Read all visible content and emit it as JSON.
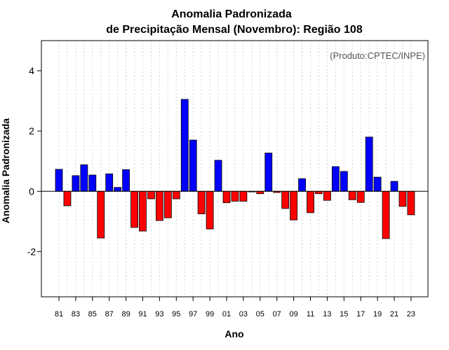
{
  "chart_data": {
    "type": "bar",
    "title_line1": "Anomalia Padronizada",
    "title_line2": "de Precipitação Mensal (Novembro): Região 108",
    "xlabel": "Ano",
    "ylabel": "Anomalia Padronizada",
    "credit": "(Produto:CPTEC/INPE)",
    "ylim": [
      -3.5,
      5.0
    ],
    "yticks": [
      -2,
      0,
      2,
      4
    ],
    "ytick_labels": [
      "-2",
      "0",
      "2",
      "4"
    ],
    "categories": [
      "81",
      "82",
      "83",
      "84",
      "85",
      "86",
      "87",
      "88",
      "89",
      "90",
      "91",
      "92",
      "93",
      "94",
      "95",
      "96",
      "97",
      "98",
      "99",
      "00",
      "01",
      "02",
      "03",
      "04",
      "05",
      "06",
      "07",
      "08",
      "09",
      "10",
      "11",
      "12",
      "13",
      "14",
      "15",
      "16",
      "17",
      "18",
      "19",
      "20",
      "21",
      "22",
      "23"
    ],
    "xtick_labels": [
      "81",
      "83",
      "85",
      "87",
      "89",
      "91",
      "93",
      "95",
      "97",
      "99",
      "01",
      "03",
      "05",
      "07",
      "09",
      "11",
      "13",
      "15",
      "17",
      "19",
      "21",
      "23"
    ],
    "values": [
      0.73,
      -0.48,
      0.52,
      0.88,
      0.54,
      -1.55,
      0.58,
      0.13,
      0.72,
      -1.2,
      -1.32,
      -0.25,
      -0.97,
      -0.88,
      -0.25,
      3.05,
      1.7,
      -0.75,
      -1.25,
      1.03,
      -0.38,
      -0.33,
      -0.33,
      -0.02,
      -0.08,
      1.27,
      -0.04,
      -0.57,
      -0.95,
      0.42,
      -0.71,
      -0.08,
      -0.3,
      0.82,
      0.66,
      -0.28,
      -0.37,
      1.8,
      0.47,
      -1.57,
      0.33,
      -0.5,
      -0.78
    ],
    "colors": {
      "positive": "#0000ff",
      "negative": "#ff0000",
      "grid": "#d3d3d3"
    }
  }
}
